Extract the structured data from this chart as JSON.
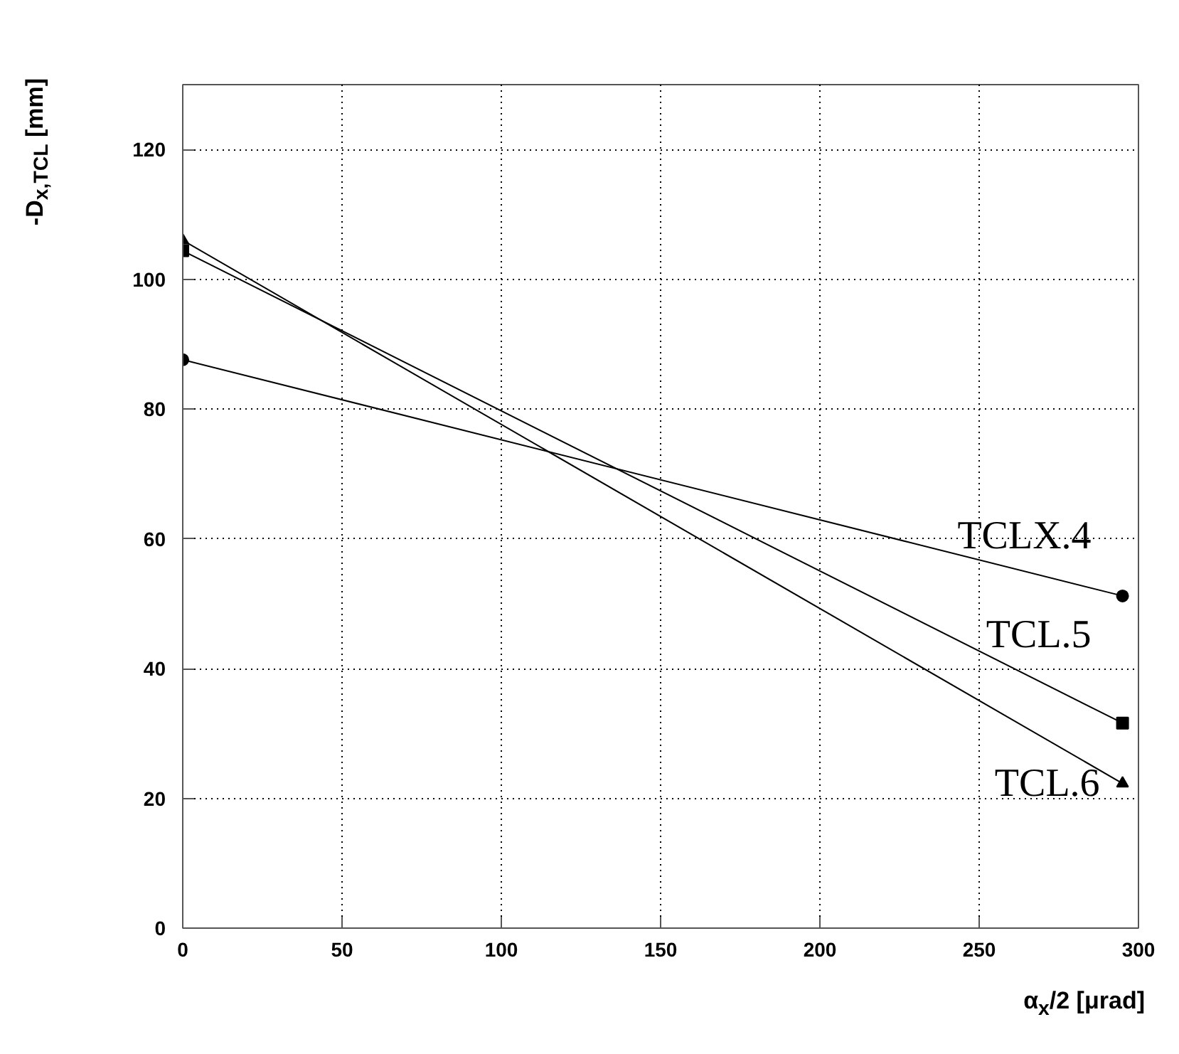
{
  "chart_data": {
    "type": "line",
    "xlabel": "α$_{x}$/2 [μrad]",
    "ylabel": "-D$_{x,TCL}$ [mm]",
    "xlim": [
      0,
      300
    ],
    "xticks": [
      0,
      50,
      100,
      150,
      200,
      250,
      300
    ],
    "ylim": [
      0,
      130
    ],
    "yticks": [
      0,
      20,
      40,
      60,
      80,
      100,
      120
    ],
    "grid": true,
    "line_style": "solid",
    "x": [
      0,
      295
    ],
    "series": [
      {
        "name": "TCLX.4",
        "color": "#000000",
        "marker": "circle",
        "values": [
          87.6,
          51.2
        ]
      },
      {
        "name": "TCL.5",
        "color": "#000000",
        "marker": "square",
        "values": [
          104.4,
          31.6
        ]
      },
      {
        "name": "TCL.6",
        "color": "#000000",
        "marker": "triangle",
        "values": [
          106.0,
          22.3
        ]
      }
    ]
  }
}
